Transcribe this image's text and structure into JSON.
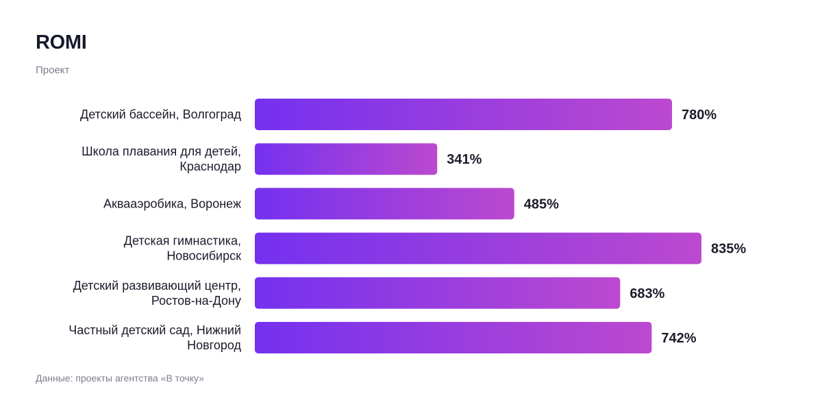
{
  "header": {
    "title": "ROMI",
    "subtitle": "Проект"
  },
  "footer": {
    "source": "Данные: проекты агентства «В точку»"
  },
  "colors": {
    "bar_gradient_start": "#7431EF",
    "bar_gradient_end": "#BC49CF",
    "label_text": "#1b1b2b",
    "muted_text": "#7b7e8c"
  },
  "chart_data": {
    "type": "bar",
    "orientation": "horizontal",
    "title": "ROMI",
    "subtitle": "Проект",
    "categories": [
      [
        "Детский бассейн, Волгоград"
      ],
      [
        "Школа плавания для детей,",
        "Краснодар"
      ],
      [
        "Аквааэробика, Воронеж"
      ],
      [
        "Детская гимнастика,",
        "Новосибирск"
      ],
      [
        "Детский развивающий центр,",
        "Ростов-на-Дону"
      ],
      [
        "Частный детский сад, Нижний",
        "Новгород"
      ]
    ],
    "values": [
      780,
      341,
      485,
      835,
      683,
      742
    ],
    "value_labels": [
      "780%",
      "341%",
      "485%",
      "835%",
      "683%",
      "742%"
    ],
    "unit": "%",
    "xlim": [
      0,
      835
    ],
    "grid": false,
    "legend": "none"
  }
}
